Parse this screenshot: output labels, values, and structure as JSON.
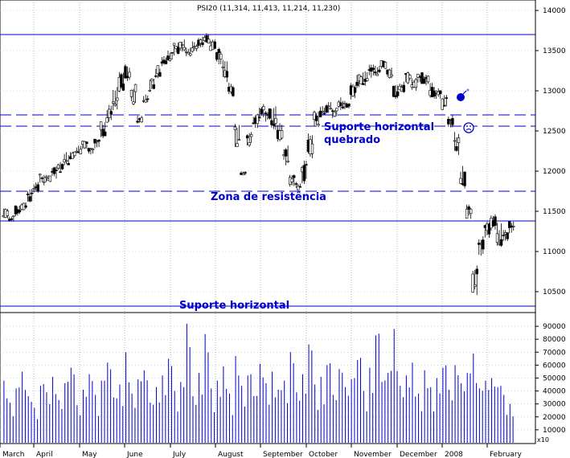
{
  "title": "PSI20 (11,314, 11,413, 11,214, 11,230)",
  "chart_data": [
    {
      "type": "candlestick",
      "title": "PSI20 (11,314, 11,413, 11,214, 11,230)",
      "x_axis": {
        "months": [
          "March",
          "April",
          "May",
          "June",
          "July",
          "August",
          "September",
          "October",
          "November",
          "December",
          "2008",
          "February"
        ]
      },
      "y_axis": {
        "ticks": [
          10500,
          11000,
          11500,
          12000,
          12500,
          13000,
          13500,
          14000
        ],
        "ylim": [
          10250,
          14050
        ],
        "side": "right"
      },
      "grid": "dotted vertical month lines",
      "series": [
        {
          "values": [
            [
              11560,
              11390
            ],
            [
              11450,
              11370
            ],
            [
              11580,
              11420
            ],
            [
              11620,
              11500
            ],
            [
              11780,
              11600
            ],
            [
              11880,
              11720
            ],
            [
              11980,
              11820
            ],
            [
              11960,
              11850
            ],
            [
              12060,
              11900
            ],
            [
              12120,
              11980
            ],
            [
              12240,
              12070
            ],
            [
              12260,
              12140
            ],
            [
              12320,
              12200
            ],
            [
              12400,
              12260
            ],
            [
              12310,
              12180
            ],
            [
              12420,
              12280
            ],
            [
              12620,
              12400
            ],
            [
              12840,
              12560
            ],
            [
              13100,
              12740
            ],
            [
              13260,
              12980
            ],
            [
              13340,
              13100
            ],
            [
              13100,
              12780
            ],
            [
              12700,
              12580
            ],
            [
              12980,
              12820
            ],
            [
              13180,
              12960
            ],
            [
              13320,
              13140
            ],
            [
              13440,
              13300
            ],
            [
              13500,
              13360
            ],
            [
              13600,
              13440
            ],
            [
              13640,
              13480
            ],
            [
              13540,
              13420
            ],
            [
              13620,
              13460
            ],
            [
              13680,
              13520
            ],
            [
              13720,
              13580
            ],
            [
              13660,
              13480
            ],
            [
              13560,
              13300
            ],
            [
              13400,
              13100
            ],
            [
              13100,
              12900
            ],
            [
              12600,
              12300
            ],
            [
              12000,
              11940
            ],
            [
              12520,
              12300
            ],
            [
              12740,
              12520
            ],
            [
              12860,
              12620
            ],
            [
              12780,
              12600
            ],
            [
              12820,
              12500
            ],
            [
              12600,
              12360
            ],
            [
              12340,
              12060
            ],
            [
              12000,
              11760
            ],
            [
              11880,
              11760
            ],
            [
              12140,
              11820
            ],
            [
              12520,
              12160
            ],
            [
              12760,
              12540
            ],
            [
              12820,
              12660
            ],
            [
              12880,
              12720
            ],
            [
              12800,
              12640
            ],
            [
              12920,
              12740
            ],
            [
              12880,
              12760
            ],
            [
              13140,
              12880
            ],
            [
              13240,
              13020
            ],
            [
              13300,
              13060
            ],
            [
              13340,
              13160
            ],
            [
              13320,
              13180
            ],
            [
              13400,
              13240
            ],
            [
              13300,
              13140
            ],
            [
              13100,
              12860
            ],
            [
              13120,
              12960
            ],
            [
              13260,
              13080
            ],
            [
              13180,
              13000
            ],
            [
              13240,
              13060
            ],
            [
              13200,
              13040
            ],
            [
              13100,
              12900
            ],
            [
              13060,
              12880
            ],
            [
              12960,
              12760
            ],
            [
              12700,
              12500
            ],
            [
              12500,
              12200
            ],
            [
              12080,
              11760
            ],
            [
              11600,
              11400
            ],
            [
              10900,
              10420
            ],
            [
              11200,
              10940
            ],
            [
              11400,
              11160
            ],
            [
              11480,
              11260
            ],
            [
              11360,
              11040
            ],
            [
              11280,
              11080
            ],
            [
              11413,
              11214
            ]
          ]
        }
      ]
    },
    {
      "type": "bar",
      "title": "Volume",
      "y_axis": {
        "ticks": [
          10000,
          20000,
          30000,
          40000,
          50000,
          60000,
          70000,
          80000,
          90000
        ],
        "ylim": [
          0,
          100000
        ]
      },
      "values": [
        48000,
        31000,
        42000,
        55000,
        36000,
        27000,
        44000,
        39000,
        51000,
        33000,
        46000,
        58000,
        29000,
        41000,
        53000,
        37000,
        48000,
        62000,
        35000,
        45000,
        70000,
        38000,
        49000,
        56000,
        31000,
        43000,
        52000,
        65000,
        40000,
        47000,
        92000,
        36000,
        54000,
        84000,
        42000,
        48000,
        59000,
        38000,
        67000,
        44000,
        52000,
        36000,
        61000,
        46000,
        55000,
        41000,
        48000,
        70000,
        39000,
        53000,
        76000,
        45000,
        51000,
        60000,
        37000,
        57000,
        43000,
        49000,
        64000,
        40000,
        58000,
        83000,
        47000,
        54000,
        88000,
        44000,
        52000,
        62000,
        38000,
        56000,
        43000,
        50000,
        58000,
        41000,
        60000,
        46000,
        54000,
        69000,
        42000,
        48000,
        50000,
        43000,
        37000,
        30000
      ],
      "unit_label": "x10"
    }
  ],
  "annotations": {
    "resistance_line": {
      "value": 13700
    },
    "dashed_1": {
      "value": 12700
    },
    "dashed_2": {
      "value": 12560
    },
    "dashed_3": {
      "value": 11750
    },
    "support_1": {
      "value": 11380
    },
    "support_2": {
      "value": 10320
    },
    "label_broken_support_line1": "Suporte horizontal",
    "label_broken_support_line2": "quebrado",
    "label_resistance_zone": "Zona de resistência",
    "label_support": "Suporte horizontal",
    "icons": [
      "bomb-icon",
      "sad-face-icon"
    ],
    "accent_color": "#0000cc",
    "candle_up_color": "#ffffff",
    "candle_down_color": "#000000"
  }
}
